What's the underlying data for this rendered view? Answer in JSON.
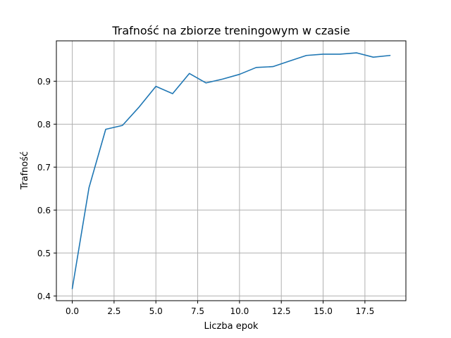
{
  "chart_data": {
    "type": "line",
    "title": "Trafność na zbiorze treningowym w czasie",
    "xlabel": "Liczba epok",
    "ylabel": "Trafność",
    "x": [
      0,
      1,
      2,
      3,
      4,
      5,
      6,
      7,
      8,
      9,
      10,
      11,
      12,
      13,
      14,
      15,
      16,
      17,
      18,
      19
    ],
    "series": [
      {
        "values": [
          0.417,
          0.652,
          0.788,
          0.797,
          0.84,
          0.888,
          0.871,
          0.918,
          0.896,
          0.905,
          0.916,
          0.932,
          0.934,
          0.947,
          0.96,
          0.963,
          0.963,
          0.966,
          0.956,
          0.96
        ],
        "color": "#1f77b4"
      }
    ],
    "xlim": [
      -0.95,
      19.95
    ],
    "ylim": [
      0.389,
      0.994
    ],
    "xticks": [
      0,
      2.5,
      5,
      7.5,
      10,
      12.5,
      15,
      17.5
    ],
    "xtick_labels": [
      "0.0",
      "2.5",
      "5.0",
      "7.5",
      "10.0",
      "12.5",
      "15.0",
      "17.5"
    ],
    "yticks": [
      0.4,
      0.5,
      0.6,
      0.7,
      0.8,
      0.9
    ],
    "ytick_labels": [
      "0.4",
      "0.5",
      "0.6",
      "0.7",
      "0.8",
      "0.9"
    ],
    "grid": true
  }
}
